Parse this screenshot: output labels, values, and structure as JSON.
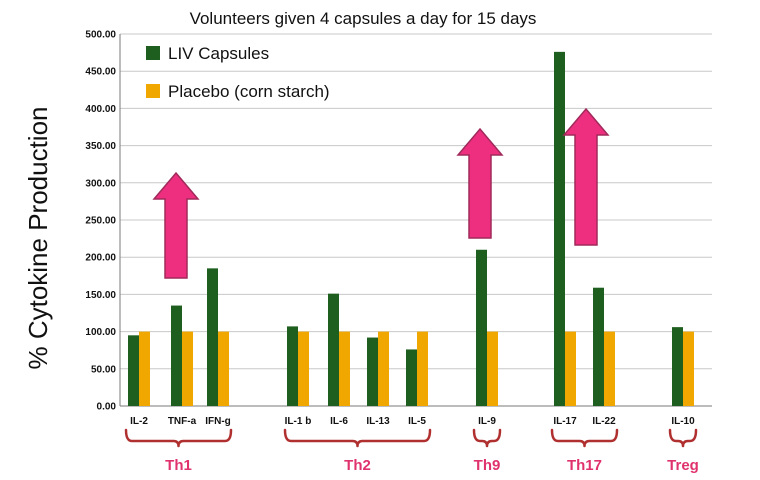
{
  "chart_data": {
    "type": "bar",
    "title": "Volunteers given 4 capsules a day for 15 days",
    "ylabel": "% Cytokine Production",
    "xlabel": "",
    "ylim": [
      0,
      500
    ],
    "yticks": [
      "0.00",
      "50.00",
      "100.00",
      "150.00",
      "200.00",
      "250.00",
      "300.00",
      "350.00",
      "400.00",
      "450.00",
      "500.00"
    ],
    "categories": [
      "IL-2",
      "TNF-a",
      "IFN-g",
      "IL-1 b",
      "IL-6",
      "IL-13",
      "IL-5",
      "IL-9",
      "IL-17",
      "IL-22",
      "IL-10"
    ],
    "series": [
      {
        "name": "LIV Capsules",
        "color": "#1e5e1e",
        "values": [
          95,
          135,
          185,
          107,
          151,
          92,
          76,
          210,
          476,
          159,
          106
        ]
      },
      {
        "name": "Placebo (corn starch)",
        "color": "#f0a800",
        "values": [
          100,
          100,
          100,
          100,
          100,
          100,
          100,
          100,
          100,
          100,
          100
        ]
      }
    ],
    "groups": [
      {
        "label": "Th1",
        "categories": [
          "IL-2",
          "TNF-a",
          "IFN-g"
        ]
      },
      {
        "label": "Th2",
        "categories": [
          "IL-1 b",
          "IL-6",
          "IL-13",
          "IL-5"
        ]
      },
      {
        "label": "Th9",
        "categories": [
          "IL-9"
        ]
      },
      {
        "label": "Th17",
        "categories": [
          "IL-17",
          "IL-22"
        ]
      },
      {
        "label": "Treg",
        "categories": [
          "IL-10"
        ]
      }
    ],
    "annotations": [
      {
        "type": "up-arrow",
        "near": "TNF-a",
        "color": "#ee2f80"
      },
      {
        "type": "up-arrow",
        "near": "IL-9",
        "color": "#ee2f80"
      },
      {
        "type": "up-arrow",
        "near": "IL-17",
        "color": "#ee2f80"
      }
    ],
    "legend_position": "top-left",
    "grid": true
  }
}
